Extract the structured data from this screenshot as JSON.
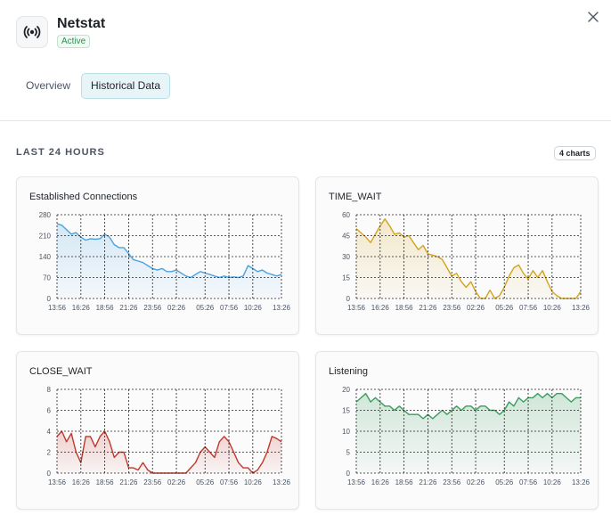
{
  "header": {
    "title": "Netstat",
    "status": "Active"
  },
  "tabs": [
    "Overview",
    "Historical Data"
  ],
  "active_tab": 1,
  "section": {
    "title": "LAST 24 HOURS",
    "badge": "4 charts"
  },
  "chart_data": [
    {
      "type": "line",
      "title": "Established Connections",
      "color": "#4aa3df",
      "values": [
        250,
        245,
        230,
        215,
        220,
        205,
        195,
        200,
        198,
        200,
        215,
        205,
        180,
        170,
        170,
        150,
        130,
        125,
        120,
        110,
        100,
        95,
        100,
        90,
        90,
        95,
        85,
        75,
        70,
        80,
        90,
        85,
        80,
        75,
        70,
        75,
        70,
        72,
        70,
        75,
        110,
        100,
        90,
        95,
        85,
        80,
        75,
        80
      ],
      "xlim": [
        0,
        47
      ],
      "xticks": [
        {
          "value": 0,
          "label": "13:56"
        },
        {
          "value": 5,
          "label": "16:26"
        },
        {
          "value": 10,
          "label": "18:56"
        },
        {
          "value": 15,
          "label": "21:26"
        },
        {
          "value": 20,
          "label": "23:56"
        },
        {
          "value": 25,
          "label": "02:26"
        },
        {
          "value": 31,
          "label": "05:26"
        },
        {
          "value": 36,
          "label": "07:56"
        },
        {
          "value": 41,
          "label": "10:26"
        },
        {
          "value": 47,
          "label": "13:26"
        }
      ],
      "ylim": [
        0,
        280
      ],
      "yticks": [
        0,
        70,
        140,
        210,
        280
      ],
      "grid": true
    },
    {
      "type": "line",
      "title": "TIME_WAIT",
      "color": "#d4a41c",
      "values": [
        50,
        47,
        44,
        40,
        46,
        52,
        57,
        52,
        46,
        47,
        44,
        45,
        40,
        35,
        38,
        32,
        31,
        30,
        28,
        22,
        16,
        18,
        12,
        8,
        12,
        5,
        0,
        0,
        6,
        0,
        2,
        8,
        16,
        22,
        24,
        18,
        14,
        20,
        15,
        20,
        12,
        5,
        2,
        0,
        0,
        0,
        0,
        5
      ],
      "xlim": [
        0,
        47
      ],
      "xticks": [
        {
          "value": 0,
          "label": "13:56"
        },
        {
          "value": 5,
          "label": "16:26"
        },
        {
          "value": 10,
          "label": "18:56"
        },
        {
          "value": 15,
          "label": "21:26"
        },
        {
          "value": 20,
          "label": "23:56"
        },
        {
          "value": 25,
          "label": "02:26"
        },
        {
          "value": 31,
          "label": "05:26"
        },
        {
          "value": 36,
          "label": "07:56"
        },
        {
          "value": 41,
          "label": "10:26"
        },
        {
          "value": 47,
          "label": "13:26"
        }
      ],
      "ylim": [
        0,
        60
      ],
      "yticks": [
        0,
        15,
        30,
        45,
        60
      ],
      "grid": true
    },
    {
      "type": "line",
      "title": "CLOSE_WAIT",
      "color": "#c0392b",
      "values": [
        3.5,
        4,
        3,
        3.8,
        2,
        1,
        3.5,
        3.5,
        2.5,
        3.5,
        4,
        3,
        1.5,
        2,
        2,
        0.5,
        0.5,
        0.3,
        1,
        0.3,
        0,
        0,
        0,
        0,
        0,
        0,
        0,
        0,
        0.5,
        1,
        2,
        2.5,
        2,
        1.5,
        3,
        3.5,
        3,
        2,
        1,
        0.5,
        0.5,
        0,
        0.3,
        1,
        2,
        3.5,
        3.3,
        3
      ],
      "xlim": [
        0,
        47
      ],
      "xticks": [
        {
          "value": 0,
          "label": "13:56"
        },
        {
          "value": 5,
          "label": "16:26"
        },
        {
          "value": 10,
          "label": "18:56"
        },
        {
          "value": 15,
          "label": "21:26"
        },
        {
          "value": 20,
          "label": "23:56"
        },
        {
          "value": 25,
          "label": "02:26"
        },
        {
          "value": 31,
          "label": "05:26"
        },
        {
          "value": 36,
          "label": "07:56"
        },
        {
          "value": 41,
          "label": "10:26"
        },
        {
          "value": 47,
          "label": "13:26"
        }
      ],
      "ylim": [
        0,
        8
      ],
      "yticks": [
        0,
        2,
        4,
        6,
        8
      ],
      "grid": true
    },
    {
      "type": "line",
      "title": "Listening",
      "color": "#3a9d5d",
      "values": [
        17,
        18,
        19,
        17,
        18,
        17,
        16,
        16,
        15,
        16,
        15,
        14,
        14,
        14,
        13,
        14,
        13,
        14,
        15,
        14,
        15,
        16,
        15,
        16,
        16,
        15,
        16,
        16,
        15,
        15,
        14,
        15,
        17,
        16,
        18,
        17,
        18,
        18,
        19,
        18,
        19,
        18,
        19,
        19,
        18,
        17,
        18,
        18
      ],
      "xlim": [
        0,
        47
      ],
      "xticks": [
        {
          "value": 0,
          "label": "13:56"
        },
        {
          "value": 5,
          "label": "16:26"
        },
        {
          "value": 10,
          "label": "18:56"
        },
        {
          "value": 15,
          "label": "21:26"
        },
        {
          "value": 20,
          "label": "23:56"
        },
        {
          "value": 25,
          "label": "02:26"
        },
        {
          "value": 31,
          "label": "05:26"
        },
        {
          "value": 36,
          "label": "07:56"
        },
        {
          "value": 41,
          "label": "10:26"
        },
        {
          "value": 47,
          "label": "13:26"
        }
      ],
      "ylim": [
        0,
        20
      ],
      "yticks": [
        0,
        5,
        10,
        15,
        20
      ],
      "grid": true
    }
  ]
}
